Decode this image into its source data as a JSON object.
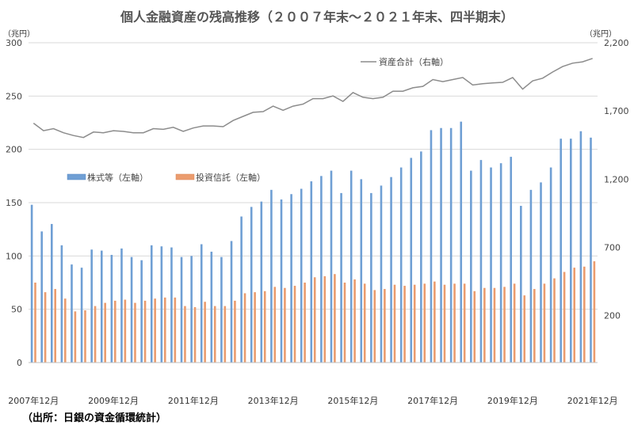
{
  "chart_data": {
    "type": "bar+line",
    "title": "個人金融資産の残高推移（２００７年末～２０２１年末、四半期末）",
    "left_unit": "（兆円）",
    "right_unit": "（兆円）",
    "source": "（出所：日銀の資金循環統計）",
    "ylim_left": [
      0,
      300
    ],
    "yticks_left": [
      0,
      50,
      100,
      150,
      200,
      250,
      300
    ],
    "ylim_right": [
      -145,
      2200
    ],
    "yticks_right": [
      200,
      700,
      1200,
      1700,
      2200
    ],
    "yticks_right_labels": [
      "200",
      "700",
      "1,200",
      "1,700",
      "2,200"
    ],
    "grid": true,
    "x_tick_labels": [
      "2007年12月",
      "2009年12月",
      "2011年12月",
      "2013年12月",
      "2015年12月",
      "2017年12月",
      "2019年12月",
      "2021年12月"
    ],
    "x_tick_every": 8,
    "series": [
      {
        "name": "株式等（左軸）",
        "type": "bar",
        "axis": "left",
        "color": "#6f9fd4",
        "values": [
          148,
          123,
          130,
          110,
          92,
          89,
          106,
          105,
          101,
          107,
          99,
          96,
          110,
          109,
          108,
          99,
          100,
          111,
          104,
          99,
          114,
          137,
          146,
          151,
          162,
          153,
          158,
          163,
          170,
          175,
          180,
          159,
          180,
          172,
          159,
          166,
          174,
          183,
          192,
          198,
          218,
          220,
          220,
          226,
          180,
          190,
          183,
          187,
          193,
          147,
          162,
          169,
          183,
          210,
          210,
          217,
          211
        ]
      },
      {
        "name": "投資信託（左軸）",
        "type": "bar",
        "axis": "left",
        "color": "#eb9c6e",
        "values": [
          75,
          66,
          69,
          60,
          48,
          49,
          53,
          56,
          58,
          59,
          56,
          58,
          60,
          61,
          61,
          53,
          52,
          57,
          53,
          53,
          58,
          65,
          66,
          67,
          71,
          70,
          72,
          75,
          80,
          81,
          83,
          75,
          78,
          74,
          68,
          69,
          73,
          72,
          73,
          74,
          76,
          73,
          74,
          74,
          67,
          70,
          70,
          71,
          74,
          63,
          69,
          74,
          79,
          85,
          89,
          90,
          95
        ]
      },
      {
        "name": "資産合計（右軸）",
        "type": "line",
        "axis": "right",
        "color": "#8c8c8c",
        "values": [
          1610,
          1555,
          1570,
          1540,
          1520,
          1505,
          1545,
          1540,
          1555,
          1550,
          1540,
          1540,
          1570,
          1565,
          1580,
          1550,
          1575,
          1590,
          1590,
          1585,
          1630,
          1660,
          1690,
          1695,
          1735,
          1705,
          1735,
          1750,
          1790,
          1790,
          1810,
          1770,
          1835,
          1800,
          1790,
          1800,
          1845,
          1845,
          1870,
          1880,
          1930,
          1915,
          1930,
          1945,
          1890,
          1900,
          1905,
          1910,
          1945,
          1860,
          1920,
          1940,
          1985,
          2025,
          2050,
          2060,
          2085
        ]
      }
    ]
  }
}
